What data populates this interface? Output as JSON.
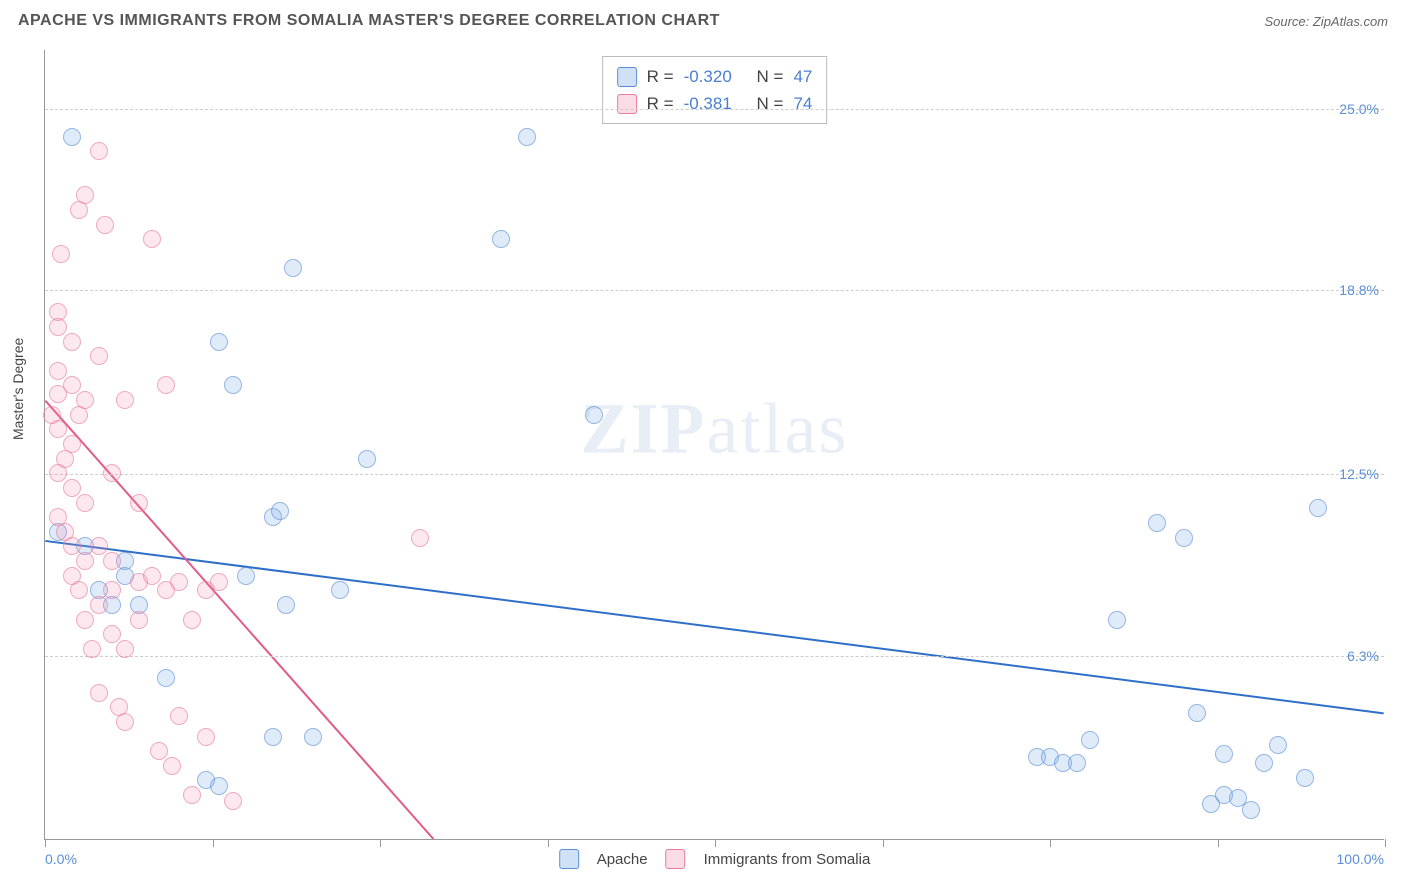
{
  "header": {
    "title": "APACHE VS IMMIGRANTS FROM SOMALIA MASTER'S DEGREE CORRELATION CHART",
    "source": "Source: ZipAtlas.com"
  },
  "axes": {
    "y_label": "Master's Degree",
    "x_min_label": "0.0%",
    "x_max_label": "100.0%",
    "x_min": 0,
    "x_max": 100,
    "y_min": 0,
    "y_max": 27,
    "y_ticks": [
      {
        "v": 6.3,
        "label": "6.3%"
      },
      {
        "v": 12.5,
        "label": "12.5%"
      },
      {
        "v": 18.8,
        "label": "18.8%"
      },
      {
        "v": 25.0,
        "label": "25.0%"
      }
    ],
    "x_tick_positions": [
      0,
      12.5,
      25,
      37.5,
      50,
      62.5,
      75,
      87.5,
      100
    ]
  },
  "watermark": {
    "bold": "ZIP",
    "rest": "atlas"
  },
  "legend": {
    "series1_label": "Apache",
    "series2_label": "Immigrants from Somalia"
  },
  "stats": {
    "s1": {
      "R_label": "R =",
      "R": "-0.320",
      "N_label": "N =",
      "N": "47"
    },
    "s2": {
      "R_label": "R =",
      "R": "-0.381",
      "N_label": "N =",
      "N": "74"
    }
  },
  "chart": {
    "type": "scatter",
    "background_color": "#ffffff",
    "grid_color": "#cccccc",
    "series": [
      {
        "name": "Apache",
        "color_fill": "rgba(120,170,230,0.35)",
        "color_stroke": "#5b8fd6",
        "trend": {
          "x1": 0,
          "y1": 10.2,
          "x2": 100,
          "y2": 4.3,
          "stroke": "#2f6fc9",
          "width": 2
        },
        "points": [
          [
            1,
            10.5
          ],
          [
            2,
            24
          ],
          [
            3,
            10
          ],
          [
            4,
            8.5
          ],
          [
            5,
            8
          ],
          [
            6,
            9
          ],
          [
            6,
            9.5
          ],
          [
            7,
            8
          ],
          [
            9,
            5.5
          ],
          [
            12,
            2
          ],
          [
            13,
            1.8
          ],
          [
            13,
            17
          ],
          [
            14,
            15.5
          ],
          [
            15,
            9
          ],
          [
            17,
            3.5
          ],
          [
            17,
            11
          ],
          [
            17.5,
            11.2
          ],
          [
            18,
            8
          ],
          [
            18.5,
            19.5
          ],
          [
            20,
            3.5
          ],
          [
            22,
            8.5
          ],
          [
            24,
            13
          ],
          [
            34,
            20.5
          ],
          [
            36,
            24
          ],
          [
            41,
            14.5
          ],
          [
            74,
            2.8
          ],
          [
            75,
            2.8
          ],
          [
            76,
            2.6
          ],
          [
            77,
            2.6
          ],
          [
            78,
            3.4
          ],
          [
            80,
            7.5
          ],
          [
            83,
            10.8
          ],
          [
            85,
            10.3
          ],
          [
            86,
            4.3
          ],
          [
            87,
            1.2
          ],
          [
            88,
            1.5
          ],
          [
            89,
            1.4
          ],
          [
            90,
            1.0
          ],
          [
            91,
            2.6
          ],
          [
            92,
            3.2
          ],
          [
            94,
            2.1
          ],
          [
            95,
            11.3
          ],
          [
            88,
            2.9
          ]
        ]
      },
      {
        "name": "Immigrants from Somalia",
        "color_fill": "rgba(240,140,170,0.3)",
        "color_stroke": "#e87ca0",
        "trend": {
          "x1": 0,
          "y1": 15.0,
          "x2": 29,
          "y2": 0,
          "stroke": "#e05a8a",
          "width": 2
        },
        "points": [
          [
            0.5,
            14.5
          ],
          [
            1,
            18
          ],
          [
            1,
            17.5
          ],
          [
            1,
            16
          ],
          [
            1,
            15.2
          ],
          [
            1,
            14
          ],
          [
            1,
            12.5
          ],
          [
            1,
            11
          ],
          [
            1.2,
            20
          ],
          [
            1.5,
            13
          ],
          [
            1.5,
            10.5
          ],
          [
            2,
            17
          ],
          [
            2,
            15.5
          ],
          [
            2,
            13.5
          ],
          [
            2,
            12
          ],
          [
            2,
            10
          ],
          [
            2,
            9
          ],
          [
            2.5,
            21.5
          ],
          [
            2.5,
            14.5
          ],
          [
            2.5,
            8.5
          ],
          [
            3,
            22
          ],
          [
            3,
            15
          ],
          [
            3,
            11.5
          ],
          [
            3,
            9.5
          ],
          [
            3,
            7.5
          ],
          [
            3.5,
            6.5
          ],
          [
            4,
            23.5
          ],
          [
            4,
            16.5
          ],
          [
            4,
            10
          ],
          [
            4,
            8
          ],
          [
            4,
            5
          ],
          [
            4.5,
            21
          ],
          [
            5,
            12.5
          ],
          [
            5,
            9.5
          ],
          [
            5,
            8.5
          ],
          [
            5,
            7
          ],
          [
            5.5,
            4.5
          ],
          [
            6,
            15
          ],
          [
            6,
            6.5
          ],
          [
            6,
            4
          ],
          [
            7,
            11.5
          ],
          [
            7,
            8.8
          ],
          [
            7,
            7.5
          ],
          [
            8,
            20.5
          ],
          [
            8,
            9
          ],
          [
            8.5,
            3
          ],
          [
            9,
            15.5
          ],
          [
            9,
            8.5
          ],
          [
            9.5,
            2.5
          ],
          [
            10,
            4.2
          ],
          [
            10,
            8.8
          ],
          [
            11,
            7.5
          ],
          [
            11,
            1.5
          ],
          [
            12,
            8.5
          ],
          [
            12,
            3.5
          ],
          [
            13,
            8.8
          ],
          [
            14,
            1.3
          ],
          [
            28,
            10.3
          ]
        ]
      }
    ]
  }
}
